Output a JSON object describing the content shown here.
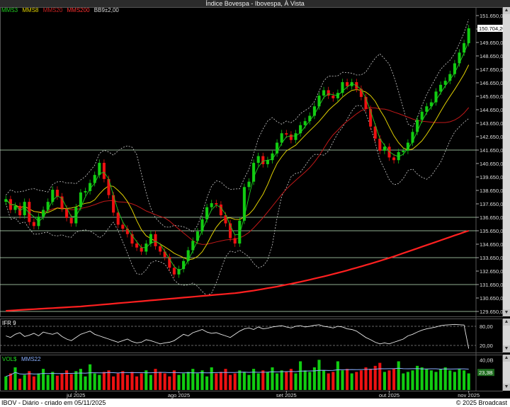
{
  "window": {
    "title": "Índice Bovespa - Ibovespa, À Vista"
  },
  "legend": [
    {
      "label": "MMS3",
      "color": "#22cc22"
    },
    {
      "label": "MMS8",
      "color": "#e0d000"
    },
    {
      "label": "MMS20",
      "color": "#cc2222"
    },
    {
      "label": "MMS200",
      "color": "#ff2a2a"
    },
    {
      "label": "BB9±2,00",
      "color": "#dddddd"
    }
  ],
  "price_axis": {
    "ticks": [
      "151.650,00",
      "150.650,00",
      "149.650,00",
      "148.650,00",
      "147.650,00",
      "146.650,00",
      "145.650,00",
      "144.650,00",
      "143.650,00",
      "142.650,00",
      "141.650,00",
      "140.650,00",
      "139.650,00",
      "138.650,00",
      "137.650,00",
      "136.650,00",
      "135.650,00",
      "134.650,00",
      "133.650,00",
      "132.650,00",
      "131.650,00",
      "130.650,00",
      "129.650,00"
    ],
    "last_price_label": "150.704,20"
  },
  "ifr_panel": {
    "label": "IFR 9",
    "ticks": [
      "80,00",
      "20,00"
    ]
  },
  "vol_panel": {
    "label": "VOL$",
    "ma_label": "MMS22",
    "ticks": [
      "40,0B",
      "23,3B"
    ]
  },
  "date_axis": [
    "jul 2025",
    "ago 2025",
    "set 2025",
    "out 2025",
    "nov 2025"
  ],
  "footer": {
    "left": "IBOV - Diário - criado em 05/11/2025",
    "right": "© 2025 Broadcast"
  },
  "chart_data": {
    "type": "candlestick",
    "title": "Índice Bovespa - Ibovespa, À Vista",
    "ylim": [
      129650,
      151650
    ],
    "support_resistance_lines": [
      141650,
      136650,
      135650,
      133650,
      131650,
      129650
    ],
    "x_labels": [
      "jul 2025",
      "ago 2025",
      "set 2025",
      "out 2025",
      "nov 2025"
    ],
    "close": [
      138000,
      137200,
      137500,
      136800,
      137800,
      136300,
      136000,
      136700,
      137200,
      137800,
      138700,
      138200,
      137300,
      136600,
      136200,
      137400,
      138500,
      138600,
      139200,
      139800,
      140700,
      139500,
      138300,
      137000,
      136100,
      135800,
      135400,
      134700,
      134400,
      134100,
      134700,
      135400,
      134500,
      134100,
      133700,
      132900,
      132400,
      132800,
      133400,
      134200,
      134900,
      135600,
      136500,
      137400,
      137700,
      137600,
      136800,
      136200,
      135100,
      134700,
      136400,
      138900,
      139300,
      140700,
      141200,
      140600,
      140900,
      141400,
      142200,
      142900,
      142800,
      142400,
      142900,
      143500,
      143800,
      144200,
      144900,
      145700,
      146100,
      145700,
      145500,
      145900,
      146700,
      146400,
      146700,
      146200,
      145600,
      144700,
      143400,
      142500,
      141600,
      141900,
      141100,
      140900,
      141500,
      141600,
      142200,
      143000,
      143900,
      144500,
      144900,
      145200,
      146000,
      146500,
      146800,
      147300,
      148100,
      148900,
      149600,
      150704
    ],
    "mms200": [
      129700,
      129720,
      129740,
      129760,
      129780,
      129800,
      129820,
      129840,
      129860,
      129880,
      129900,
      129920,
      129940,
      129960,
      129980,
      130000,
      130020,
      130050,
      130080,
      130110,
      130140,
      130170,
      130200,
      130230,
      130260,
      130290,
      130320,
      130350,
      130380,
      130410,
      130440,
      130470,
      130500,
      130530,
      130560,
      130590,
      130620,
      130650,
      130680,
      130710,
      130740,
      130770,
      130800,
      130830,
      130860,
      130890,
      130920,
      130950,
      130980,
      131010,
      131050,
      131100,
      131150,
      131200,
      131260,
      131320,
      131380,
      131440,
      131500,
      131570,
      131640,
      131710,
      131780,
      131850,
      131930,
      132010,
      132090,
      132170,
      132250,
      132340,
      132430,
      132520,
      132610,
      132700,
      132800,
      132900,
      133000,
      133100,
      133200,
      133300,
      133410,
      133520,
      133630,
      133740,
      133860,
      133980,
      134100,
      134220,
      134340,
      134460,
      134580,
      134700,
      134820,
      134940,
      135060,
      135180,
      135300,
      135420,
      135540,
      135650
    ],
    "ifr9": [
      50,
      45,
      55,
      60,
      48,
      52,
      58,
      50,
      62,
      58,
      55,
      60,
      48,
      40,
      35,
      45,
      55,
      60,
      65,
      55,
      50,
      45,
      40,
      35,
      30,
      35,
      40,
      32,
      28,
      30,
      38,
      35,
      30,
      25,
      28,
      30,
      35,
      45,
      55,
      50,
      60,
      65,
      70,
      62,
      58,
      60,
      55,
      50,
      45,
      55,
      65,
      72,
      75,
      70,
      78,
      72,
      74,
      78,
      80,
      82,
      78,
      75,
      80,
      82,
      78,
      80,
      83,
      85,
      80,
      78,
      75,
      80,
      78,
      72,
      70,
      65,
      55,
      45,
      38,
      30,
      25,
      28,
      25,
      30,
      35,
      40,
      50,
      55,
      62,
      68,
      72,
      75,
      78,
      82,
      84,
      85,
      86,
      85,
      84,
      10
    ],
    "volume": [
      18,
      22,
      30,
      15,
      20,
      25,
      18,
      22,
      28,
      20,
      24,
      19,
      22,
      26,
      21,
      25,
      28,
      18,
      34,
      22,
      20,
      24,
      26,
      18,
      22,
      25,
      20,
      24,
      18,
      22,
      26,
      20,
      28,
      24,
      22,
      18,
      26,
      20,
      22,
      24,
      28,
      22,
      26,
      18,
      30,
      22,
      24,
      28,
      20,
      22,
      26,
      24,
      20,
      28,
      22,
      26,
      24,
      30,
      22,
      26,
      24,
      28,
      22,
      38,
      26,
      24,
      30,
      40,
      26,
      22,
      24,
      38,
      26,
      28,
      22,
      24,
      26,
      30,
      28,
      32,
      36,
      24,
      26,
      28,
      38,
      22,
      24,
      26,
      32,
      30,
      28,
      26,
      24,
      28,
      30,
      26,
      24,
      28,
      26,
      22
    ]
  }
}
